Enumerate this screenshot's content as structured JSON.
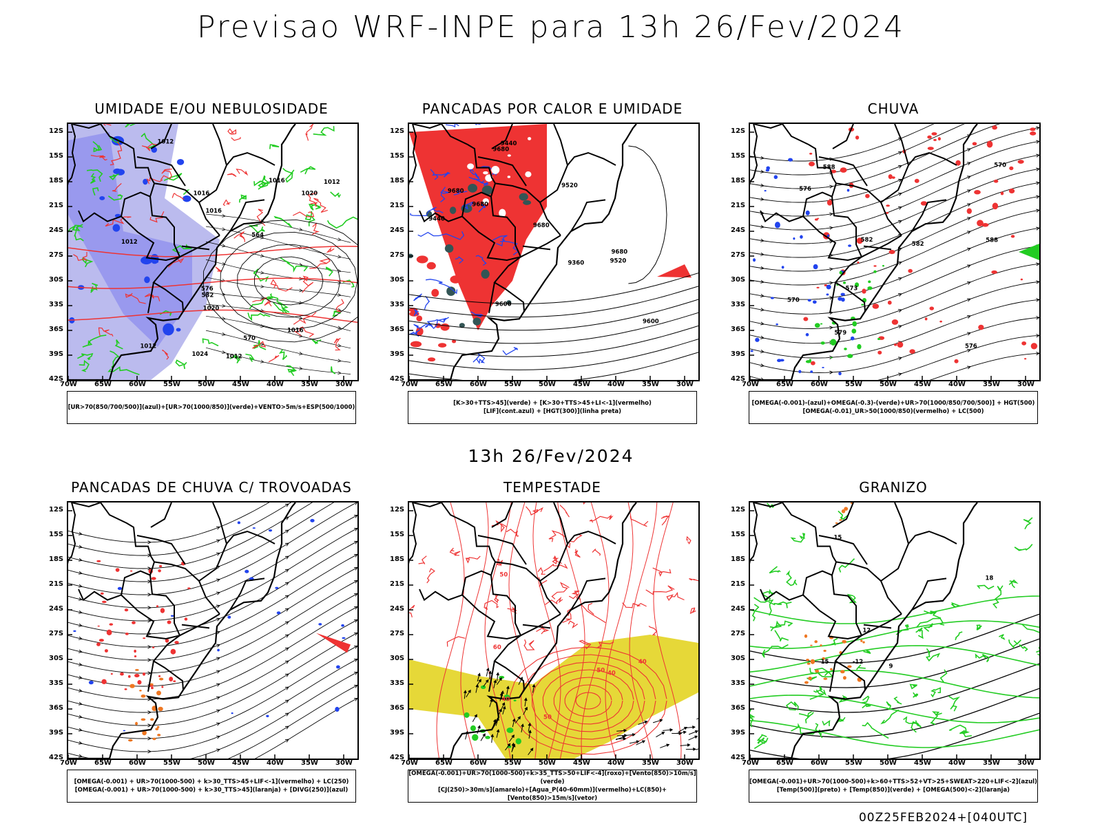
{
  "main_title": "Previsao WRF-INPE  para 13h 26/Fev/2024",
  "sub_title": "13h 26/Fev/2024",
  "footer": "00Z25FEB2024+[040UTC]",
  "lat_labels": [
    "12S",
    "15S",
    "18S",
    "21S",
    "24S",
    "27S",
    "30S",
    "33S",
    "36S",
    "39S",
    "42S"
  ],
  "lon_labels": [
    "70W",
    "65W",
    "60W",
    "55W",
    "50W",
    "45W",
    "40W",
    "35W",
    "30W"
  ],
  "colors": {
    "blue": "#2244ee",
    "lilac": "#9999ee",
    "light_lilac": "#bbbbee",
    "green": "#22cc22",
    "red": "#ee3333",
    "dark_teal": "#335555",
    "yellow": "#e6d838",
    "orange": "#ee7722",
    "purple": "#aa33aa"
  },
  "panels": [
    {
      "title": "UMIDADE E/OU NEBULOSIDADE",
      "legend": [
        "[UR>70(850/700/500)](azul)+[UR>70(1000/850)](verde)+VENTO>5m/s+ESP(500/1000)"
      ],
      "contour_labels": [
        "1012",
        "1012",
        "1016",
        "1016",
        "1020",
        "1012",
        "1016",
        "1020",
        "1024",
        "1012",
        "1016",
        "1012",
        "576",
        "570",
        "564",
        "582"
      ]
    },
    {
      "title": "PANCADAS POR CALOR E UMIDADE",
      "legend": [
        "[K>30+TTS>45](verde)  +  [K>30+TTS>45+LI<-1](vermelho)",
        "[LIF](cont.azul)  +  [HGT(300)](linha preta)"
      ],
      "contour_labels": [
        "9680",
        "9680",
        "9680",
        "9680",
        "9600",
        "9520",
        "9440",
        "9360",
        "9600",
        "9520",
        "9440",
        "9680"
      ]
    },
    {
      "title": "CHUVA",
      "legend": [
        "[OMEGA(-0.001)-(azul)+OMEGA(-0.3)-(verde)+UR>70(1000/850/700/500)]  +  HGT(500)",
        "[OMEGA(-0.01)_UR>50(1000/850)(vermelho)  +  LC(500)"
      ],
      "contour_labels": [
        "588",
        "588",
        "582",
        "576",
        "570",
        "576",
        "582",
        "579",
        "573",
        "570"
      ]
    },
    {
      "title": "PANCADAS DE CHUVA C/ TROVOADAS",
      "legend": [
        "[OMEGA(-0.001)  +  UR>70(1000-500)  +  k>30_TTS>45+LIF<-1](vermelho)  +  LC(250)",
        "[OMEGA(-0.001)  +  UR>70(1000-500)  +  k>30_TTS>45](laranja)  +  [DIVG(250)](azul)"
      ],
      "contour_labels": []
    },
    {
      "title": "TEMPESTADE",
      "legend": [
        "[OMEGA(-0.001)+UR>70(1000-500)+k>35_TTS>50+LIF<-4](roxo)+[Vento(850)>10m/s](verde)",
        "[CJ(250)>30m/s](amarelo)+[Agua_P(40-60mm)](vermelho)+LC(850)+[Vento(850)>15m/s](vetor)"
      ],
      "contour_labels": [
        "40",
        "50",
        "60",
        "40",
        "50",
        "50",
        "40"
      ]
    },
    {
      "title": "GRANIZO",
      "legend": [
        "[OMEGA(-0.001)+UR>70(1000-500)+k>60+TTS>52+VT>25+SWEAT>220+LIF<-2](azul)",
        "[Temp(500)](preto)  +  [Temp(850)](verde)  +  [OMEGA(500)<-2](laranja)"
      ],
      "contour_labels": [
        "-12",
        "15",
        "15",
        "12",
        "9",
        "18"
      ]
    }
  ]
}
